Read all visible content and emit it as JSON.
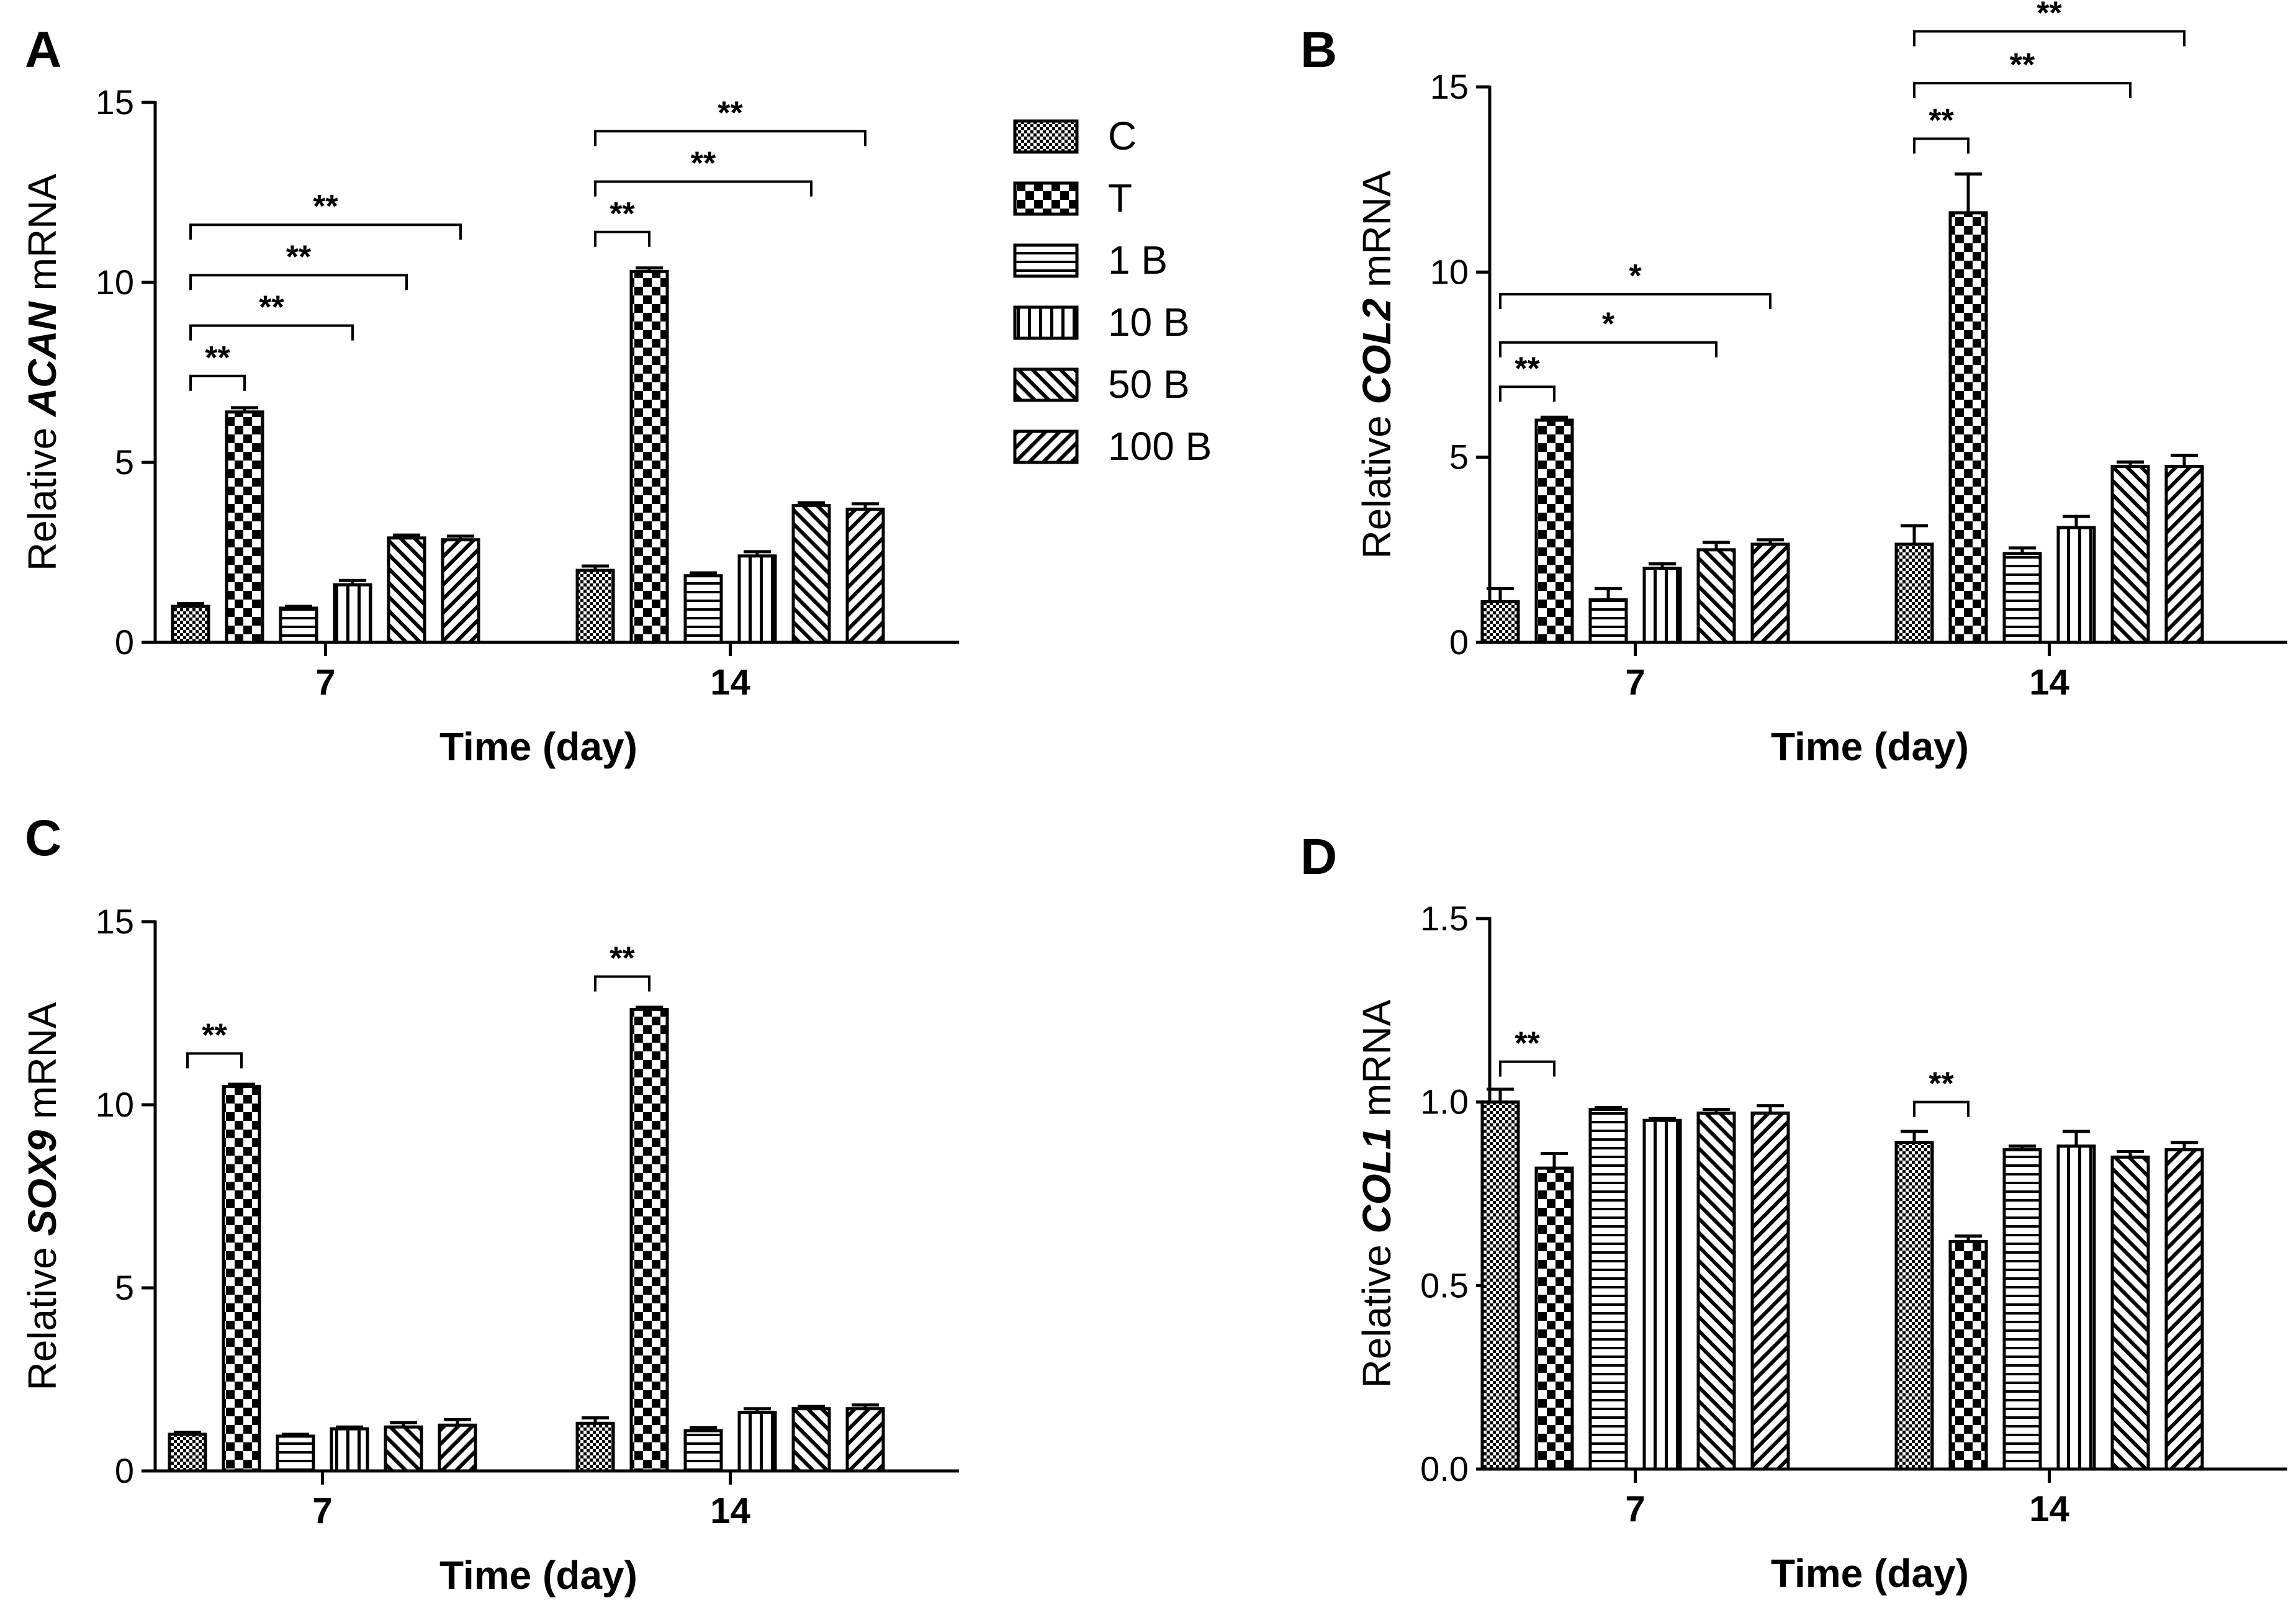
{
  "figure": {
    "legend": [
      "C",
      "T",
      "1 B",
      "10 B",
      "50 B",
      "100 B"
    ],
    "pattern_names": [
      "fine-check",
      "coarse-check",
      "horizontal-stripes",
      "vertical-stripes",
      "diagonal-forward",
      "diagonal-back"
    ]
  },
  "chart_data": [
    {
      "panel": "A",
      "type": "bar",
      "ylabel_prefix": "Relative ",
      "ylabel_gene": "ACAN",
      "ylabel_suffix": " mRNA",
      "xlabel": "Time (day)",
      "categories": [
        "7",
        "14"
      ],
      "ylim": [
        0,
        15
      ],
      "yticks": [
        0,
        5,
        10,
        15
      ],
      "ytick_labels": [
        "0",
        "5",
        "10",
        "15"
      ],
      "series": [
        {
          "name": "C",
          "values": [
            1.0,
            2.0
          ],
          "errors": [
            0.08,
            0.12
          ]
        },
        {
          "name": "T",
          "values": [
            6.4,
            10.3
          ],
          "errors": [
            0.12,
            0.1
          ]
        },
        {
          "name": "1 B",
          "values": [
            0.95,
            1.85
          ],
          "errors": [
            0.05,
            0.08
          ]
        },
        {
          "name": "10 B",
          "values": [
            1.6,
            2.4
          ],
          "errors": [
            0.12,
            0.12
          ]
        },
        {
          "name": "50 B",
          "values": [
            2.9,
            3.8
          ],
          "errors": [
            0.08,
            0.08
          ]
        },
        {
          "name": "100 B",
          "values": [
            2.85,
            3.7
          ],
          "errors": [
            0.1,
            0.15
          ]
        }
      ],
      "significance": [
        {
          "category": 0,
          "from": 0,
          "to": 1,
          "label": "**",
          "y": 7.4
        },
        {
          "category": 0,
          "from": 0,
          "to": 3,
          "label": "**",
          "y": 8.8
        },
        {
          "category": 0,
          "from": 0,
          "to": 4,
          "label": "**",
          "y": 10.2
        },
        {
          "category": 0,
          "from": 0,
          "to": 5,
          "label": "**",
          "y": 11.6
        },
        {
          "category": 1,
          "from": 0,
          "to": 1,
          "label": "**",
          "y": 11.4
        },
        {
          "category": 1,
          "from": 0,
          "to": 4,
          "label": "**",
          "y": 12.8
        },
        {
          "category": 1,
          "from": 0,
          "to": 5,
          "label": "**",
          "y": 14.2
        }
      ]
    },
    {
      "panel": "B",
      "type": "bar",
      "ylabel_prefix": "Relative ",
      "ylabel_gene": "COL2",
      "ylabel_suffix": " mRNA",
      "xlabel": "Time (day)",
      "categories": [
        "7",
        "14"
      ],
      "ylim": [
        0,
        15
      ],
      "yticks": [
        0,
        5,
        10,
        15
      ],
      "ytick_labels": [
        "0",
        "5",
        "10",
        "15"
      ],
      "series": [
        {
          "name": "C",
          "values": [
            1.1,
            2.65
          ],
          "errors": [
            0.35,
            0.5
          ]
        },
        {
          "name": "T",
          "values": [
            6.0,
            11.6
          ],
          "errors": [
            0.08,
            1.05
          ]
        },
        {
          "name": "1 B",
          "values": [
            1.15,
            2.4
          ],
          "errors": [
            0.3,
            0.15
          ]
        },
        {
          "name": "10 B",
          "values": [
            2.0,
            3.1
          ],
          "errors": [
            0.12,
            0.3
          ]
        },
        {
          "name": "50 B",
          "values": [
            2.5,
            4.75
          ],
          "errors": [
            0.2,
            0.12
          ]
        },
        {
          "name": "100 B",
          "values": [
            2.65,
            4.75
          ],
          "errors": [
            0.12,
            0.3
          ]
        }
      ],
      "significance": [
        {
          "category": 0,
          "from": 0,
          "to": 1,
          "label": "**",
          "y": 6.9
        },
        {
          "category": 0,
          "from": 0,
          "to": 4,
          "label": "*",
          "y": 8.1
        },
        {
          "category": 0,
          "from": 0,
          "to": 5,
          "label": "*",
          "y": 9.4
        },
        {
          "category": 1,
          "from": 0,
          "to": 1,
          "label": "**",
          "y": 13.6
        },
        {
          "category": 1,
          "from": 0,
          "to": 4,
          "label": "**",
          "y": 15.1
        },
        {
          "category": 1,
          "from": 0,
          "to": 5,
          "label": "**",
          "y": 16.5
        }
      ]
    },
    {
      "panel": "C",
      "type": "bar",
      "ylabel_prefix": "Relative ",
      "ylabel_gene": "SOX9",
      "ylabel_suffix": " mRNA",
      "xlabel": "Time (day)",
      "categories": [
        "7",
        "14"
      ],
      "ylim": [
        0,
        15
      ],
      "yticks": [
        0,
        5,
        10,
        15
      ],
      "ytick_labels": [
        "0",
        "5",
        "10",
        "15"
      ],
      "series": [
        {
          "name": "C",
          "values": [
            1.0,
            1.3
          ],
          "errors": [
            0.05,
            0.15
          ]
        },
        {
          "name": "T",
          "values": [
            10.5,
            12.6
          ],
          "errors": [
            0.06,
            0.06
          ]
        },
        {
          "name": "1 B",
          "values": [
            0.95,
            1.1
          ],
          "errors": [
            0.05,
            0.08
          ]
        },
        {
          "name": "10 B",
          "values": [
            1.15,
            1.6
          ],
          "errors": [
            0.05,
            0.1
          ]
        },
        {
          "name": "50 B",
          "values": [
            1.2,
            1.7
          ],
          "errors": [
            0.12,
            0.06
          ]
        },
        {
          "name": "100 B",
          "values": [
            1.25,
            1.7
          ],
          "errors": [
            0.15,
            0.1
          ]
        }
      ],
      "significance": [
        {
          "category": 0,
          "from": 0,
          "to": 1,
          "label": "**",
          "y": 11.4
        },
        {
          "category": 1,
          "from": 0,
          "to": 1,
          "label": "**",
          "y": 13.5
        }
      ]
    },
    {
      "panel": "D",
      "type": "bar",
      "ylabel_prefix": "Relative ",
      "ylabel_gene": "COL1",
      "ylabel_suffix": " mRNA",
      "xlabel": "Time (day)",
      "categories": [
        "7",
        "14"
      ],
      "ylim": [
        0,
        1.5
      ],
      "yticks": [
        0,
        0.5,
        1.0,
        1.5
      ],
      "ytick_labels": [
        "0.0",
        "0.5",
        "1.0",
        "1.5"
      ],
      "series": [
        {
          "name": "C",
          "values": [
            1.0,
            0.89
          ],
          "errors": [
            0.035,
            0.03
          ]
        },
        {
          "name": "T",
          "values": [
            0.82,
            0.62
          ],
          "errors": [
            0.04,
            0.015
          ]
        },
        {
          "name": "1 B",
          "values": [
            0.98,
            0.87
          ],
          "errors": [
            0.005,
            0.01
          ]
        },
        {
          "name": "10 B",
          "values": [
            0.95,
            0.88
          ],
          "errors": [
            0.005,
            0.04
          ]
        },
        {
          "name": "50 B",
          "values": [
            0.97,
            0.85
          ],
          "errors": [
            0.01,
            0.015
          ]
        },
        {
          "name": "100 B",
          "values": [
            0.97,
            0.87
          ],
          "errors": [
            0.02,
            0.02
          ]
        }
      ],
      "significance": [
        {
          "category": 0,
          "from": 0,
          "to": 1,
          "label": "**",
          "y": 1.11
        },
        {
          "category": 1,
          "from": 0,
          "to": 1,
          "label": "**",
          "y": 1.0
        }
      ]
    }
  ]
}
